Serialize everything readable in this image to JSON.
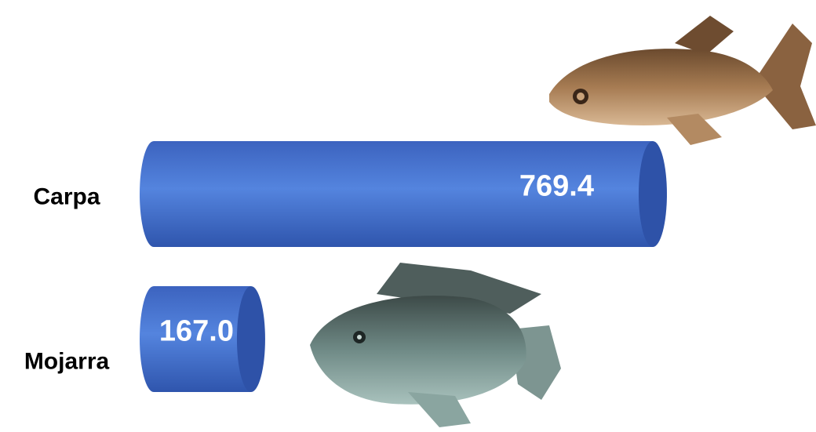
{
  "chart_data": {
    "type": "cylinder-bar",
    "categories": [
      "Carpa",
      "Mojarra"
    ],
    "values": [
      769.4,
      167.0
    ],
    "value_labels": [
      "769.4",
      "167.0"
    ],
    "color": "#4a78d6"
  }
}
